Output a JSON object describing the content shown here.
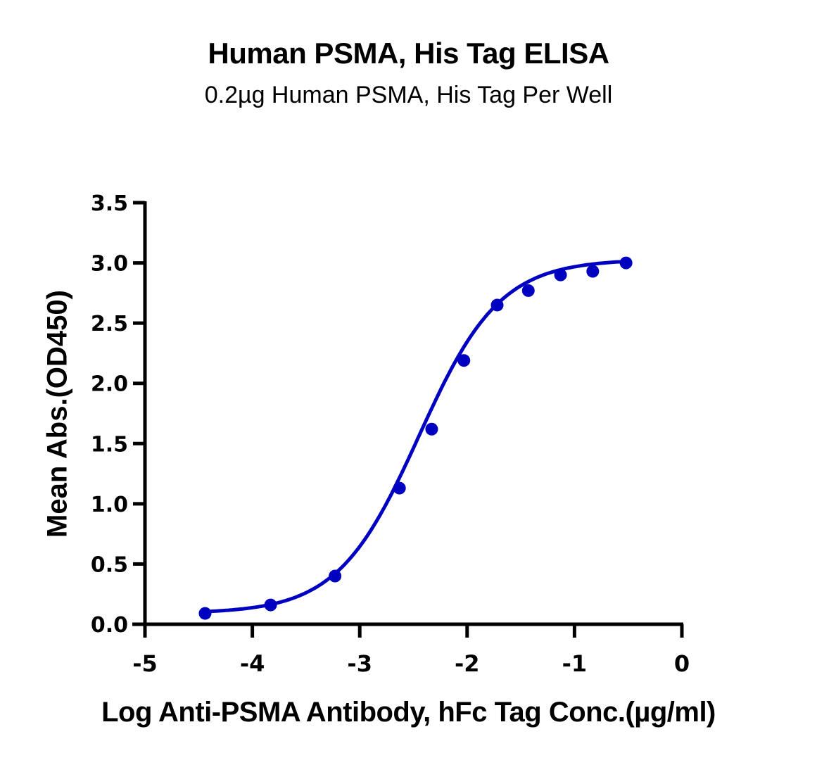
{
  "chart_data": {
    "type": "scatter",
    "title": "Human PSMA, His Tag ELISA",
    "subtitle": "0.2µg Human PSMA, His Tag Per Well",
    "xlabel": "Log Anti-PSMA Antibody, hFc Tag Conc.(µg/ml)",
    "ylabel": "Mean Abs.(OD450)",
    "xlim": [
      -5,
      0
    ],
    "ylim": [
      0,
      3.5
    ],
    "xticks": [
      "-5",
      "-4",
      "-3",
      "-2",
      "-1",
      "0"
    ],
    "yticks": [
      "0.0",
      "0.5",
      "1.0",
      "1.5",
      "2.0",
      "2.5",
      "3.0",
      "3.5"
    ],
    "grid": false,
    "legend": null,
    "series": [
      {
        "name": "Anti-PSMA Antibody, hFc Tag",
        "color": "#0000c0",
        "x": [
          -4.44,
          -3.83,
          -3.23,
          -2.63,
          -2.33,
          -2.03,
          -1.72,
          -1.43,
          -1.13,
          -0.83,
          -0.52
        ],
        "y": [
          0.09,
          0.16,
          0.4,
          1.13,
          1.62,
          2.19,
          2.65,
          2.77,
          2.9,
          2.93,
          3.0
        ],
        "fit": {
          "model": "4PL",
          "bottom": 0.09,
          "top": 3.03,
          "log_ec50": -2.45,
          "hill": 1.15
        }
      }
    ]
  }
}
